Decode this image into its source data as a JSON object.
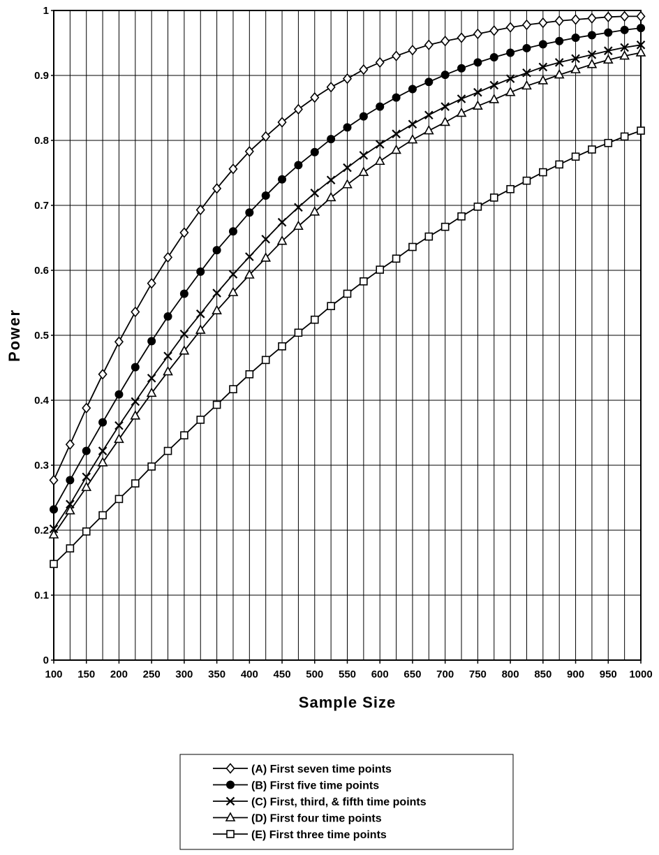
{
  "chart_data": {
    "type": "line",
    "xlabel": "Sample Size",
    "ylabel": "Power",
    "xlim": [
      100,
      1000
    ],
    "ylim": [
      0,
      1
    ],
    "x_ticks": [
      "100",
      "150",
      "200",
      "250",
      "300",
      "350",
      "400",
      "450",
      "500",
      "550",
      "600",
      "650",
      "700",
      "750",
      "800",
      "850",
      "900",
      "950",
      "1000"
    ],
    "y_ticks": [
      "0",
      "0.1",
      "0.2",
      "0.3",
      "0.4",
      "0.5",
      "0.6",
      "0.7",
      "0.8",
      "0.9",
      "1"
    ],
    "grid": true,
    "legend_position": "bottom-center",
    "x": [
      100,
      125,
      150,
      175,
      200,
      225,
      250,
      275,
      300,
      325,
      350,
      375,
      400,
      425,
      450,
      475,
      500,
      525,
      550,
      575,
      600,
      625,
      650,
      675,
      700,
      725,
      750,
      775,
      800,
      825,
      850,
      875,
      900,
      925,
      950,
      975,
      1000
    ],
    "series": [
      {
        "name": "(A) First seven time points",
        "marker": "diamond-open",
        "values": [
          0.277,
          0.332,
          0.388,
          0.44,
          0.49,
          0.536,
          0.58,
          0.62,
          0.658,
          0.693,
          0.726,
          0.756,
          0.783,
          0.806,
          0.828,
          0.848,
          0.866,
          0.882,
          0.895,
          0.909,
          0.92,
          0.93,
          0.939,
          0.947,
          0.953,
          0.958,
          0.964,
          0.969,
          0.974,
          0.978,
          0.981,
          0.984,
          0.986,
          0.988,
          0.99,
          0.991,
          0.991
        ]
      },
      {
        "name": "(B) First five time points",
        "marker": "circle-filled",
        "values": [
          0.232,
          0.277,
          0.322,
          0.366,
          0.409,
          0.451,
          0.491,
          0.529,
          0.564,
          0.598,
          0.631,
          0.66,
          0.689,
          0.715,
          0.74,
          0.762,
          0.782,
          0.802,
          0.82,
          0.837,
          0.852,
          0.866,
          0.879,
          0.89,
          0.901,
          0.911,
          0.92,
          0.928,
          0.935,
          0.942,
          0.948,
          0.953,
          0.958,
          0.962,
          0.966,
          0.97,
          0.973
        ]
      },
      {
        "name": "(C) First, third, & fifth time points",
        "marker": "cross",
        "values": [
          0.202,
          0.24,
          0.282,
          0.322,
          0.361,
          0.398,
          0.434,
          0.468,
          0.502,
          0.533,
          0.565,
          0.594,
          0.621,
          0.648,
          0.674,
          0.697,
          0.719,
          0.739,
          0.758,
          0.777,
          0.794,
          0.81,
          0.825,
          0.839,
          0.852,
          0.864,
          0.874,
          0.885,
          0.895,
          0.904,
          0.913,
          0.92,
          0.926,
          0.932,
          0.938,
          0.943,
          0.947
        ]
      },
      {
        "name": "(D) First four time points",
        "marker": "triangle-open",
        "values": [
          0.193,
          0.23,
          0.266,
          0.304,
          0.34,
          0.376,
          0.411,
          0.444,
          0.476,
          0.508,
          0.538,
          0.566,
          0.593,
          0.619,
          0.645,
          0.668,
          0.69,
          0.712,
          0.732,
          0.751,
          0.768,
          0.785,
          0.801,
          0.815,
          0.828,
          0.842,
          0.853,
          0.863,
          0.874,
          0.884,
          0.892,
          0.901,
          0.909,
          0.917,
          0.924,
          0.93,
          0.935
        ]
      },
      {
        "name": "(E) First three time points",
        "marker": "square-open",
        "values": [
          0.148,
          0.172,
          0.198,
          0.223,
          0.248,
          0.272,
          0.298,
          0.322,
          0.346,
          0.37,
          0.393,
          0.417,
          0.44,
          0.462,
          0.483,
          0.504,
          0.524,
          0.545,
          0.564,
          0.583,
          0.601,
          0.618,
          0.636,
          0.652,
          0.667,
          0.683,
          0.698,
          0.712,
          0.725,
          0.738,
          0.751,
          0.763,
          0.775,
          0.786,
          0.796,
          0.806,
          0.815
        ]
      }
    ]
  }
}
